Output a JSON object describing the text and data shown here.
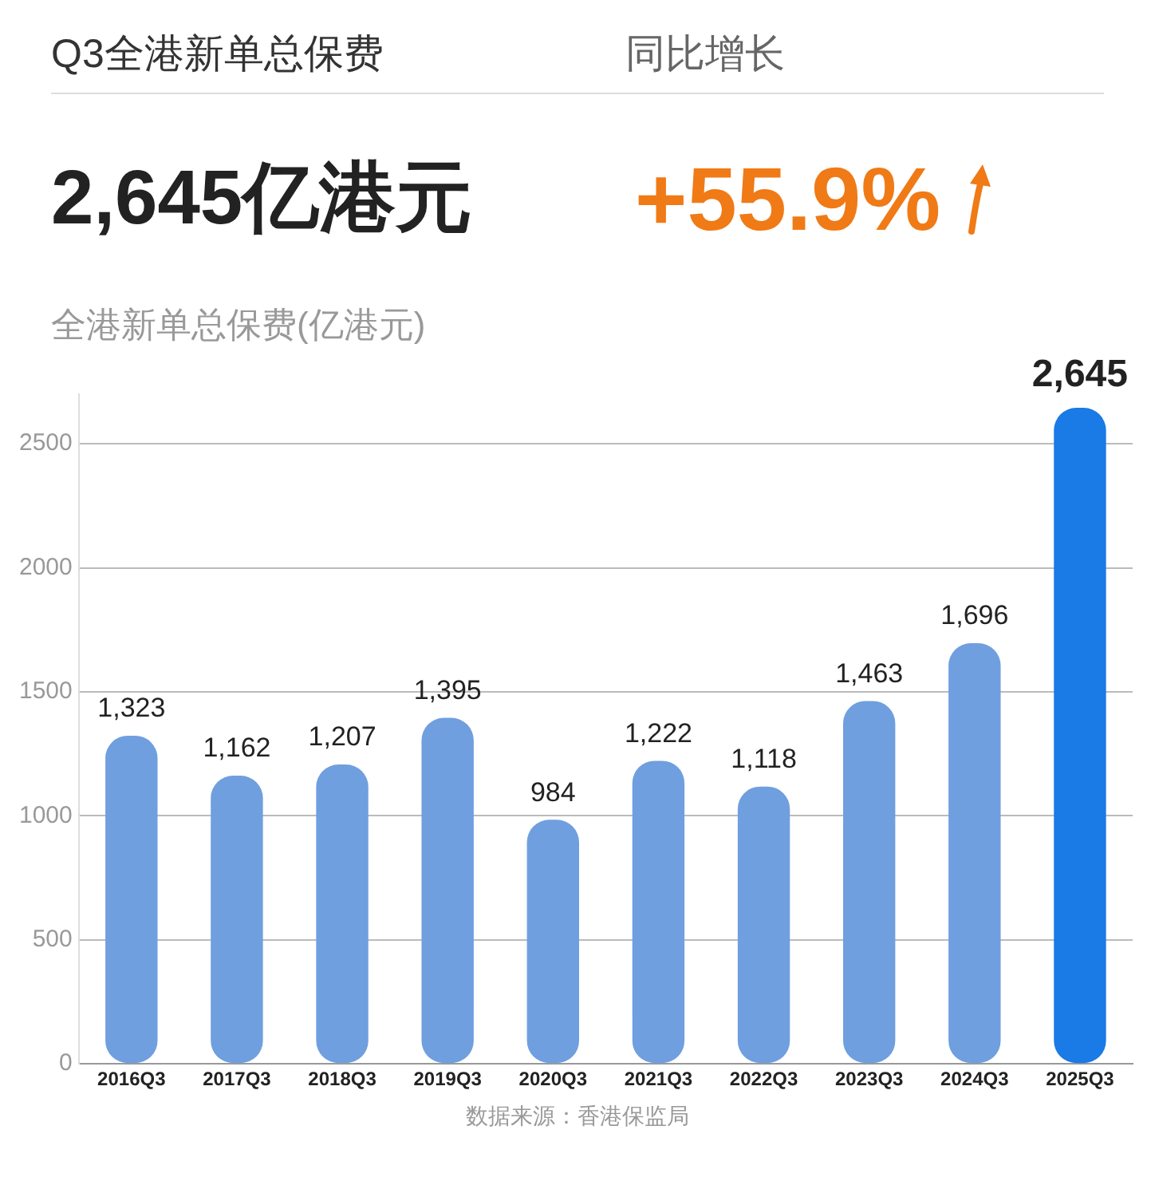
{
  "chart_data": {
    "type": "bar",
    "title": "Q3全港新单总保费",
    "ylabel": "全港新单总保费(亿港元)",
    "annotations": [
      "同比增长",
      "2,645亿港元",
      "+55.9%",
      "数据来源：香港保监局"
    ],
    "categories": [
      "2016Q3",
      "2017Q3",
      "2018Q3",
      "2019Q3",
      "2020Q3",
      "2021Q3",
      "2022Q3",
      "2023Q3",
      "2024Q3",
      "2025Q3"
    ],
    "values": [
      1323,
      1162,
      1207,
      1395,
      984,
      1222,
      1118,
      1463,
      1696,
      2645
    ],
    "colors": [
      "#6f9fdf",
      "#6f9fdf",
      "#6f9fdf",
      "#6f9fdf",
      "#6f9fdf",
      "#6f9fdf",
      "#6f9fdf",
      "#6f9fdf",
      "#6f9fdf",
      "#1a7ae6"
    ],
    "value_labels": [
      "1,323",
      "1,162",
      "1,207",
      "1,395",
      "984",
      "1,222",
      "1,118",
      "1,463",
      "1,696",
      "2,645"
    ],
    "ylim": [
      0,
      2700
    ],
    "yticks": [
      0,
      500,
      1000,
      1500,
      2000,
      2500
    ],
    "grid": "y"
  }
}
